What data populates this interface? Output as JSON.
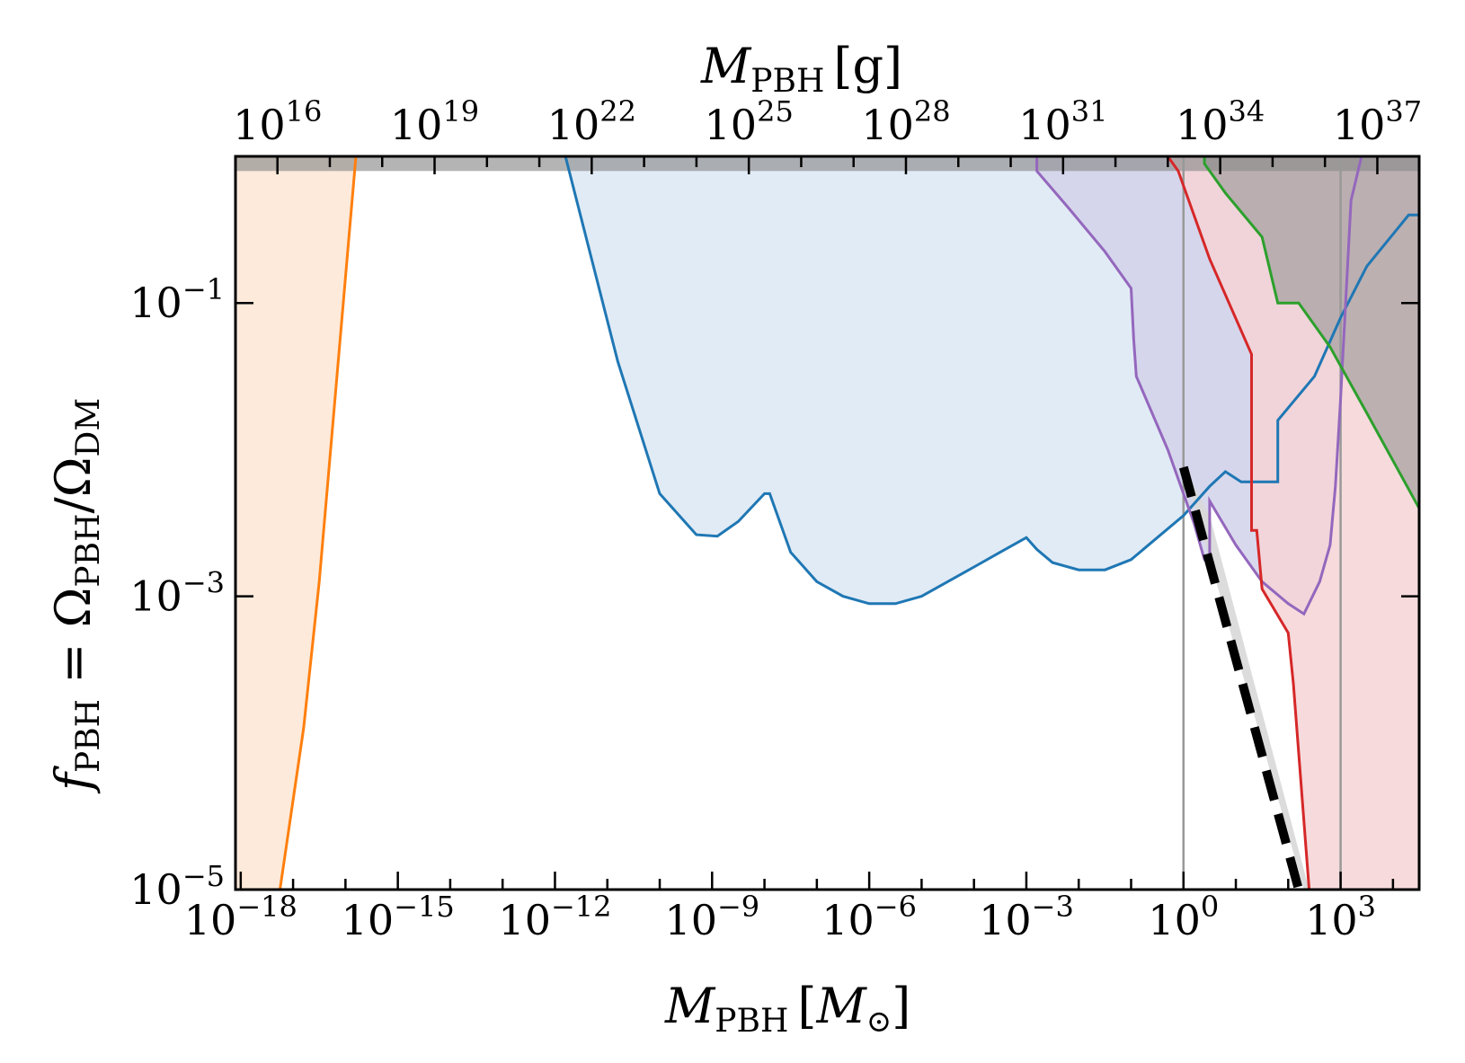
{
  "chart_data": {
    "type": "area",
    "xlabel_bottom": {
      "symbol": "M",
      "sub": "PBH",
      "unit_open": "[",
      "unit": "M",
      "unit_sub": "⊙",
      "unit_close": "]"
    },
    "xlabel_top": {
      "symbol": "M",
      "sub": "PBH",
      "unit_open": "[",
      "unit": "g",
      "unit_close": "]"
    },
    "ylabel": {
      "f": "f",
      "f_sub": "PBH",
      "eq": " = Ω",
      "num_sub": "PBH",
      "slash": "/Ω",
      "den_sub": "DM"
    },
    "x_scale": "log",
    "y_scale": "log",
    "xlim_log10_Msun": [
      -18.1,
      4.5
    ],
    "ylim_log10": [
      -5,
      0
    ],
    "bottom_ticks": [
      {
        "base": "10",
        "exp": "−18",
        "value": -18
      },
      {
        "base": "10",
        "exp": "−15",
        "value": -15
      },
      {
        "base": "10",
        "exp": "−12",
        "value": -12
      },
      {
        "base": "10",
        "exp": "−9",
        "value": -9
      },
      {
        "base": "10",
        "exp": "−6",
        "value": -6
      },
      {
        "base": "10",
        "exp": "−3",
        "value": -3
      },
      {
        "base": "10",
        "exp": "0",
        "value": 0
      },
      {
        "base": "10",
        "exp": "3",
        "value": 3
      }
    ],
    "top_ticks": [
      {
        "base": "10",
        "exp": "16",
        "value": 16
      },
      {
        "base": "10",
        "exp": "19",
        "value": 19
      },
      {
        "base": "10",
        "exp": "22",
        "value": 22
      },
      {
        "base": "10",
        "exp": "25",
        "value": 25
      },
      {
        "base": "10",
        "exp": "28",
        "value": 28
      },
      {
        "base": "10",
        "exp": "31",
        "value": 31
      },
      {
        "base": "10",
        "exp": "34",
        "value": 34
      },
      {
        "base": "10",
        "exp": "37",
        "value": 37
      }
    ],
    "y_ticks": [
      {
        "base": "10",
        "exp": "−1",
        "value": -1
      },
      {
        "base": "10",
        "exp": "−3",
        "value": -3
      },
      {
        "base": "10",
        "exp": "−5",
        "value": -5
      }
    ],
    "series": [
      {
        "color": "#ff7f0e",
        "fill": "#fde6d3",
        "fill_side": "left",
        "points_log10": [
          [
            -17.25,
            -5
          ],
          [
            -16.8,
            -3.9
          ],
          [
            -16.5,
            -2.9
          ],
          [
            -15.8,
            0
          ]
        ]
      },
      {
        "color": "#1f77b4",
        "fill": "#dce8f3",
        "fill_side": "above",
        "points_log10": [
          [
            -11.8,
            0
          ],
          [
            -10.8,
            -1.4
          ],
          [
            -10,
            -2.3
          ],
          [
            -9.3,
            -2.58
          ],
          [
            -8.9,
            -2.59
          ],
          [
            -8.5,
            -2.49
          ],
          [
            -8,
            -2.3
          ],
          [
            -7.9,
            -2.3
          ],
          [
            -7.5,
            -2.7
          ],
          [
            -7,
            -2.9
          ],
          [
            -6.5,
            -3.0
          ],
          [
            -6,
            -3.05
          ],
          [
            -5.5,
            -3.05
          ],
          [
            -5,
            -3.0
          ],
          [
            -4.5,
            -2.9
          ],
          [
            -4,
            -2.8
          ],
          [
            -3.5,
            -2.7
          ],
          [
            -3,
            -2.6
          ],
          [
            -2.8,
            -2.68
          ],
          [
            -2.5,
            -2.77
          ],
          [
            -2,
            -2.82
          ],
          [
            -1.5,
            -2.82
          ],
          [
            -1,
            -2.75
          ],
          [
            -0.5,
            -2.6
          ],
          [
            0,
            -2.45
          ],
          [
            0.5,
            -2.25
          ],
          [
            0.8,
            -2.15
          ],
          [
            1.1,
            -2.22
          ],
          [
            1.8,
            -2.22
          ],
          [
            1.8,
            -1.8
          ],
          [
            2.5,
            -1.5
          ],
          [
            3,
            -1.1
          ],
          [
            3.5,
            -0.75
          ],
          [
            4.3,
            -0.4
          ],
          [
            4.5,
            -0.4
          ]
        ]
      },
      {
        "color": "#9467bd",
        "fill": "#d2d2ea",
        "fill_side": "above",
        "points_log10": [
          [
            -2.8,
            0
          ],
          [
            -2.8,
            -0.1
          ],
          [
            -2.2,
            -0.35
          ],
          [
            -1.5,
            -0.65
          ],
          [
            -1,
            -0.9
          ],
          [
            -0.95,
            -1.25
          ],
          [
            -0.9,
            -1.5
          ],
          [
            -0.3,
            -2.0
          ],
          [
            0.2,
            -2.5
          ],
          [
            0.4,
            -2.75
          ],
          [
            0.5,
            -2.78
          ],
          [
            0.5,
            -2.35
          ],
          [
            1,
            -2.65
          ],
          [
            1.5,
            -2.9
          ],
          [
            2,
            -3.05
          ],
          [
            2.3,
            -3.12
          ],
          [
            2.6,
            -2.9
          ],
          [
            2.8,
            -2.65
          ],
          [
            2.9,
            -2.25
          ],
          [
            3,
            -1.65
          ],
          [
            3.2,
            -0.3
          ],
          [
            3.4,
            0
          ]
        ]
      },
      {
        "color": "#d62728",
        "fill": "#f5d4d6",
        "fill_side": "right",
        "points_log10": [
          [
            -0.3,
            0
          ],
          [
            -0.1,
            -0.1
          ],
          [
            0.5,
            -0.7
          ],
          [
            1.3,
            -1.35
          ],
          [
            1.3,
            -2.55
          ],
          [
            1.4,
            -2.55
          ],
          [
            1.5,
            -2.95
          ],
          [
            2,
            -3.25
          ],
          [
            2.1,
            -3.6
          ],
          [
            2.4,
            -5.0
          ]
        ]
      },
      {
        "color": "#2ca02c",
        "fill": "#8e8e8e",
        "fill_side": "above",
        "points_log10": [
          [
            0.4,
            0
          ],
          [
            0.4,
            -0.05
          ],
          [
            0.8,
            -0.25
          ],
          [
            1.5,
            -0.55
          ],
          [
            1.8,
            -1.0
          ],
          [
            2.2,
            -1.0
          ],
          [
            2.8,
            -1.3
          ],
          [
            3.5,
            -1.75
          ],
          [
            4.5,
            -2.4
          ]
        ]
      }
    ],
    "grey_wedge_log10": [
      [
        0,
        -2.12
      ],
      [
        2.3,
        -5
      ],
      [
        2.4,
        -5
      ],
      [
        0.5,
        -2.45
      ]
    ],
    "black_dashed_log10": [
      [
        0,
        -2.12
      ],
      [
        2.2,
        -5
      ]
    ],
    "vertical_lines_log10": [
      0,
      3
    ],
    "top_band_min_log10": -0.1
  }
}
